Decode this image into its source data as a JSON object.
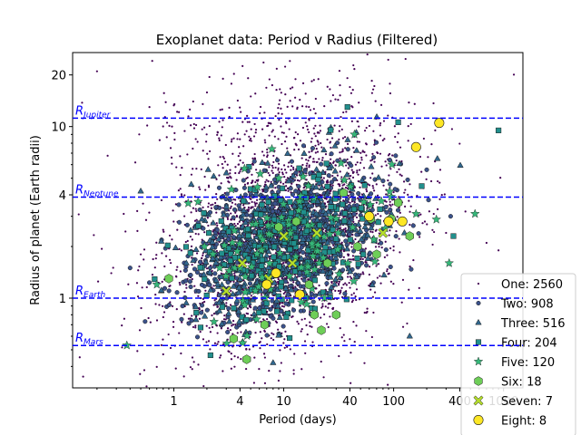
{
  "chart_data": {
    "type": "scatter",
    "title": "Exoplanet data: Period v Radius (Filtered)",
    "xlabel": "Period (days)",
    "ylabel": "Radius of planet (Earth radii)",
    "xscale": "log",
    "yscale": "log",
    "xlim": [
      0.12,
      1500
    ],
    "ylim": [
      0.3,
      27
    ],
    "xticks": [
      {
        "value": 1,
        "label": "1"
      },
      {
        "value": 4,
        "label": "4"
      },
      {
        "value": 10,
        "label": "10"
      },
      {
        "value": 40,
        "label": "40"
      },
      {
        "value": 100,
        "label": "100"
      },
      {
        "value": 400,
        "label": "400"
      },
      {
        "value": 1000,
        "label": "1000"
      }
    ],
    "yticks": [
      {
        "value": 1,
        "label": "1"
      },
      {
        "value": 4,
        "label": "4"
      },
      {
        "value": 10,
        "label": "10"
      },
      {
        "value": 20,
        "label": "20"
      }
    ],
    "reference_lines": [
      {
        "name": "Jupiter",
        "label_main": "R",
        "label_sub": "Jupiter",
        "y": 11.2,
        "color": "#0000ff"
      },
      {
        "name": "Neptune",
        "label_main": "R",
        "label_sub": "Neptune",
        "y": 3.88,
        "color": "#0000ff"
      },
      {
        "name": "Earth",
        "label_main": "R",
        "label_sub": "Earth",
        "y": 1.0,
        "color": "#0000ff"
      },
      {
        "name": "Mars",
        "label_main": "R",
        "label_sub": "Mars",
        "y": 0.53,
        "color": "#0000ff"
      }
    ],
    "legend_position": "bottom-right",
    "series": [
      {
        "name": "One",
        "count": 2560,
        "legend": "One: 2560",
        "marker": "point",
        "color": "#440154",
        "sample": [
          [
            0.2,
            21
          ],
          [
            0.35,
            3.1
          ],
          [
            0.5,
            1.8
          ],
          [
            0.8,
            2.5
          ],
          [
            1.5,
            14
          ],
          [
            2.2,
            1.1
          ],
          [
            3.5,
            2.6
          ],
          [
            5,
            8.5
          ],
          [
            7,
            1.7
          ],
          [
            9,
            3.3
          ],
          [
            12,
            2.2
          ],
          [
            15,
            1.4
          ],
          [
            20,
            6.2
          ],
          [
            25,
            2.9
          ],
          [
            35,
            1.2
          ],
          [
            50,
            2.4
          ],
          [
            70,
            3.6
          ],
          [
            100,
            2.0
          ],
          [
            150,
            2.7
          ],
          [
            220,
            4.8
          ],
          [
            300,
            2.4
          ],
          [
            450,
            3.2
          ],
          [
            700,
            2.1
          ],
          [
            900,
            1.9
          ],
          [
            0.6,
            13
          ],
          [
            2.8,
            19
          ],
          [
            40,
            17
          ],
          [
            6,
            0.55
          ],
          [
            18,
            0.68
          ]
        ]
      },
      {
        "name": "Two",
        "count": 908,
        "legend": "Two: 908",
        "marker": "circle",
        "color": "#3b528b",
        "sample": [
          [
            0.4,
            1.5
          ],
          [
            0.9,
            1.3
          ],
          [
            1.6,
            1.1
          ],
          [
            2.5,
            1.8
          ],
          [
            3.2,
            2.3
          ],
          [
            4.5,
            1.4
          ],
          [
            6,
            2.1
          ],
          [
            8,
            1.6
          ],
          [
            11,
            2.6
          ],
          [
            14,
            1.9
          ],
          [
            19,
            2.8
          ],
          [
            26,
            2.2
          ],
          [
            34,
            3.1
          ],
          [
            45,
            2.5
          ],
          [
            60,
            1.8
          ],
          [
            85,
            3.4
          ],
          [
            120,
            2.9
          ],
          [
            200,
            5.6
          ],
          [
            330,
            3.0
          ],
          [
            1.2,
            0.9
          ],
          [
            5,
            0.75
          ],
          [
            9,
            0.62
          ]
        ]
      },
      {
        "name": "Three",
        "count": 516,
        "legend": "Three: 516",
        "marker": "triangle",
        "color": "#31688e",
        "sample": [
          [
            0.5,
            4.2
          ],
          [
            1.3,
            1.6
          ],
          [
            2.1,
            2.4
          ],
          [
            3.0,
            1.3
          ],
          [
            4.2,
            2.9
          ],
          [
            5.5,
            1.2
          ],
          [
            7.5,
            2.0
          ],
          [
            10,
            3.7
          ],
          [
            13,
            1.5
          ],
          [
            17,
            2.4
          ],
          [
            23,
            3.2
          ],
          [
            30,
            2.0
          ],
          [
            42,
            4.3
          ],
          [
            55,
            2.6
          ],
          [
            80,
            3.3
          ],
          [
            140,
            0.6
          ],
          [
            250,
            6.5
          ],
          [
            15,
            0.28
          ],
          [
            8,
            0.42
          ]
        ]
      },
      {
        "name": "Four",
        "count": 204,
        "legend": "Four: 204",
        "marker": "square",
        "color": "#21908d",
        "sample": [
          [
            1.8,
            1.5
          ],
          [
            3.0,
            1.9
          ],
          [
            4.8,
            2.5
          ],
          [
            6.5,
            1.3
          ],
          [
            9,
            2.8
          ],
          [
            12,
            2.1
          ],
          [
            16,
            3.1
          ],
          [
            22,
            1.8
          ],
          [
            28,
            2.5
          ],
          [
            38,
            13
          ],
          [
            52,
            2.9
          ],
          [
            75,
            3.3
          ],
          [
            110,
            10.6
          ],
          [
            180,
            4.5
          ],
          [
            350,
            2.3
          ],
          [
            900,
            9.5
          ]
        ]
      },
      {
        "name": "Five",
        "count": 120,
        "legend": "Five: 120",
        "marker": "star",
        "color": "#35b779",
        "sample": [
          [
            0.7,
            1.2
          ],
          [
            1.9,
            2.0
          ],
          [
            3.6,
            1.5
          ],
          [
            5.2,
            2.7
          ],
          [
            7.8,
            7.4
          ],
          [
            11,
            2.3
          ],
          [
            15,
            5.1
          ],
          [
            21,
            1.6
          ],
          [
            30,
            2.9
          ],
          [
            44,
            9.0
          ],
          [
            66,
            2.2
          ],
          [
            95,
            3.9
          ],
          [
            160,
            3.1
          ],
          [
            320,
            1.6
          ],
          [
            550,
            3.1
          ]
        ]
      },
      {
        "name": "Six",
        "count": 18,
        "legend": "Six: 18",
        "marker": "hexagon",
        "color": "#6ece58",
        "sample": [
          [
            0.9,
            1.3
          ],
          [
            3.5,
            0.58
          ],
          [
            4.6,
            0.44
          ],
          [
            6.7,
            0.7
          ],
          [
            9,
            2.6
          ],
          [
            13,
            2.8
          ],
          [
            17,
            1.2
          ],
          [
            19,
            0.8
          ],
          [
            22,
            0.65
          ],
          [
            25,
            1.6
          ],
          [
            30,
            0.8
          ],
          [
            35,
            4.1
          ],
          [
            47,
            2.0
          ],
          [
            62,
            2.9
          ],
          [
            70,
            1.8
          ],
          [
            95,
            2.9
          ],
          [
            110,
            3.6
          ],
          [
            140,
            2.3
          ]
        ]
      },
      {
        "name": "Seven",
        "count": 7,
        "legend": "Seven: 7",
        "marker": "x-filled",
        "color": "#b5de2b",
        "sample": [
          [
            3.0,
            1.1
          ],
          [
            4.2,
            1.6
          ],
          [
            7.3,
            1.3
          ],
          [
            10,
            2.3
          ],
          [
            12,
            1.6
          ],
          [
            20,
            2.4
          ],
          [
            80,
            2.4
          ]
        ]
      },
      {
        "name": "Eight",
        "count": 8,
        "legend": "Eight: 8",
        "marker": "circle-large",
        "color": "#fde725",
        "sample": [
          [
            7,
            1.2
          ],
          [
            8.5,
            1.4
          ],
          [
            14,
            1.05
          ],
          [
            60,
            3.0
          ],
          [
            90,
            2.8
          ],
          [
            120,
            2.8
          ],
          [
            160,
            7.6
          ],
          [
            260,
            10.5
          ]
        ]
      }
    ]
  }
}
